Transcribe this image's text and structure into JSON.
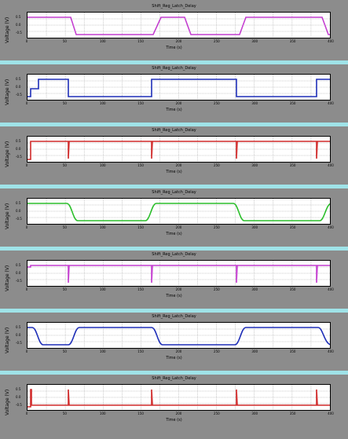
{
  "window": {
    "background": "#8c8c8c",
    "separator": "#9fe3e8"
  },
  "plots": [
    {
      "title": "Shift_Reg_Latch_Delay",
      "ylabel": "Voltage (V)",
      "xlabel": "Time (s)",
      "legend": "",
      "color": "#c43fd0",
      "wave": "sq-inv",
      "yticks": [
        "0.5",
        "0.0",
        "-0.5"
      ]
    },
    {
      "title": "Shift_Reg_Latch_Delay",
      "ylabel": "Voltage (V)",
      "xlabel": "Time (s)",
      "legend": "",
      "color": "#1f2fb8",
      "wave": "sq",
      "yticks": [
        "0.5",
        "0.0",
        "-0.5"
      ]
    },
    {
      "title": "Shift_Reg_Latch_Delay",
      "ylabel": "Voltage (V)",
      "xlabel": "Time (s)",
      "legend": "",
      "color": "#d02a2a",
      "wave": "spikes",
      "yticks": [
        "0.5",
        "0.0",
        "-0.5"
      ]
    },
    {
      "title": "Shift_Reg_Latch_Delay",
      "ylabel": "Voltage (V)",
      "xlabel": "Time (s)",
      "legend": "",
      "color": "#2bbf2b",
      "wave": "ramp",
      "yticks": [
        "0.5",
        "0.0",
        "-0.5"
      ]
    },
    {
      "title": "Shift_Reg_Latch_Delay",
      "ylabel": "Voltage (V)",
      "xlabel": "Time (s)",
      "legend": "",
      "color": "#c43fd0",
      "wave": "sq-hi",
      "yticks": [
        "0.5",
        "0.0",
        "-0.5"
      ]
    },
    {
      "title": "Shift_Reg_Latch_Delay",
      "ylabel": "Voltage (V)",
      "xlabel": "Time (s)",
      "legend": "",
      "color": "#1f2fb8",
      "wave": "ramp-hi",
      "yticks": [
        "0.5",
        "0.0",
        "-0.5"
      ]
    },
    {
      "title": "Shift_Reg_Latch_Delay",
      "ylabel": "Voltage (V)",
      "xlabel": "Time (s)",
      "legend": "",
      "color": "#d02a2a",
      "wave": "spikes-lo",
      "yticks": [
        "0.5",
        "0.0",
        "-0.5"
      ]
    }
  ],
  "xticks": [
    "0",
    "50",
    "100",
    "150",
    "200",
    "250",
    "300",
    "350",
    "400"
  ]
}
